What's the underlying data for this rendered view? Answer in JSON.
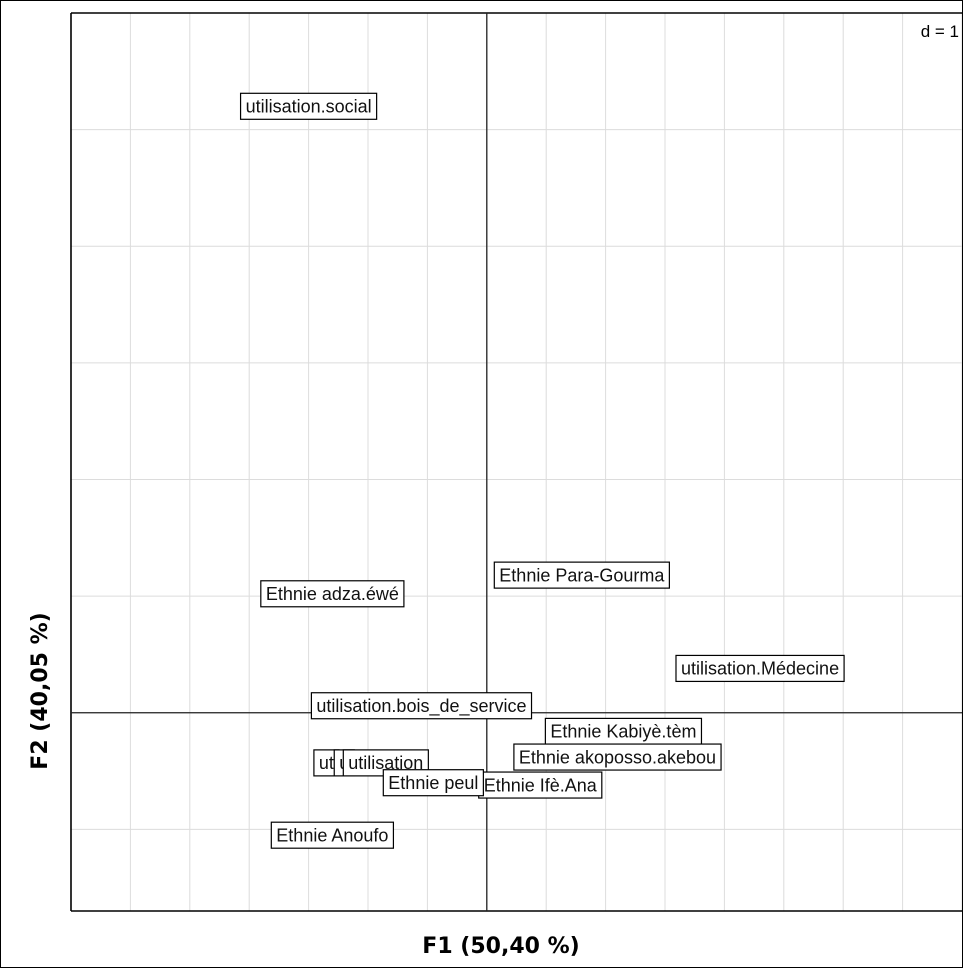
{
  "chart_data": {
    "type": "scatter",
    "title": "",
    "xlabel": "F1 (50,40 %)",
    "ylabel": "F2 (40,05 %)",
    "scale_label": "d = 1",
    "grid": true,
    "xlim": [
      -3.5,
      4
    ],
    "ylim": [
      -1.7,
      6
    ],
    "points": [
      {
        "label": "utilisation.social",
        "x": -1.5,
        "y": 5.2
      },
      {
        "label": "Ethnie Para-Gourma",
        "x": 0.8,
        "y": 1.18
      },
      {
        "label": "Ethnie adza.éwé",
        "x": -1.3,
        "y": 1.02
      },
      {
        "label": "utilisation.Médecine",
        "x": 2.3,
        "y": 0.38
      },
      {
        "label": "utilisation.bois_de_service",
        "x": -0.55,
        "y": 0.06
      },
      {
        "label": "Ethnie Kabiyè.tèm",
        "x": 1.15,
        "y": -0.16
      },
      {
        "label": "ut",
        "x": -1.35,
        "y": -0.43
      },
      {
        "label": "u",
        "x": -1.2,
        "y": -0.43
      },
      {
        "label": "utilisation",
        "x": -0.85,
        "y": -0.43
      },
      {
        "label": "Ethnie akoposso.akebou",
        "x": 1.1,
        "y": -0.38
      },
      {
        "label": "Ethnie Ifè.Ana",
        "x": 0.45,
        "y": -0.62
      },
      {
        "label": "Ethnie peul",
        "x": -0.45,
        "y": -0.6
      },
      {
        "label": "Ethnie Anoufo",
        "x": -1.3,
        "y": -1.05
      }
    ]
  }
}
